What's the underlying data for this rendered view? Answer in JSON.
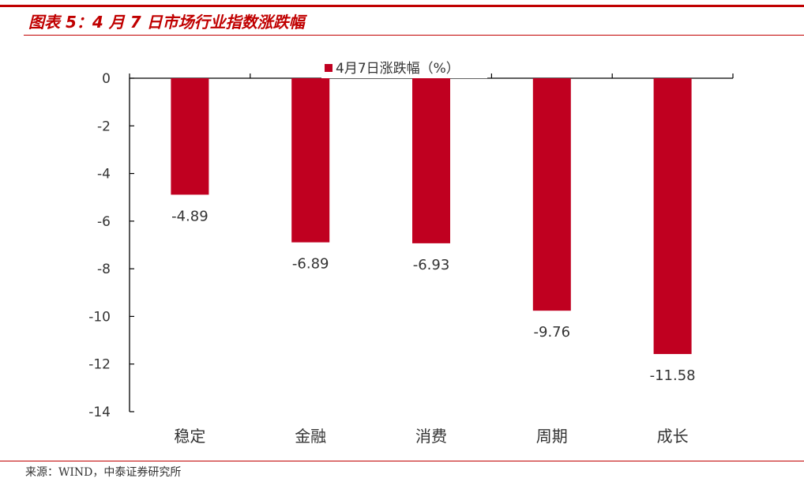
{
  "header": {
    "title": "图表 5：4 月 7 日市场行业指数涨跌幅"
  },
  "footer": {
    "source": "来源：WIND，中泰证券研究所"
  },
  "colors": {
    "accent": "#c00000",
    "bar": "#c00020",
    "axis": "#000000",
    "text": "#333333"
  },
  "chart_data": {
    "type": "bar",
    "title": "",
    "xlabel": "",
    "ylabel": "",
    "categories": [
      "稳定",
      "金融",
      "消费",
      "周期",
      "成长"
    ],
    "series": [
      {
        "name": "4月7日涨跌幅（%）",
        "values": [
          -4.89,
          -6.89,
          -6.93,
          -9.76,
          -11.58
        ]
      }
    ],
    "data_labels": [
      "-4.89",
      "-6.89",
      "-6.93",
      "-9.76",
      "-11.58"
    ],
    "ylim": [
      -14,
      0
    ],
    "yticks": [
      0,
      -2,
      -4,
      -6,
      -8,
      -10,
      -12,
      -14
    ],
    "ytick_labels": [
      "0",
      "-2",
      "-4",
      "-6",
      "-8",
      "-10",
      "-12",
      "-14"
    ],
    "grid": false,
    "legend": "top-center"
  }
}
